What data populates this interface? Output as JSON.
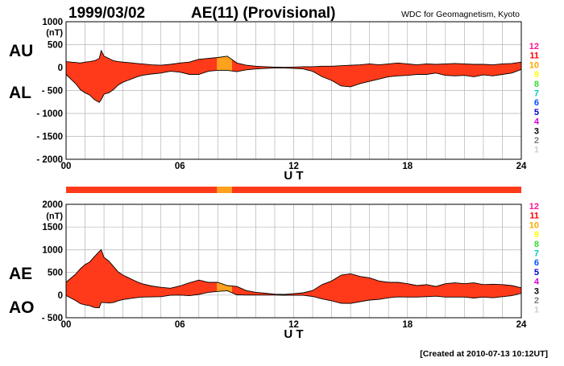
{
  "header": {
    "date": "1999/03/02",
    "title": "AE(11) (Provisional)",
    "source": "WDC for Geomagnetism, Kyoto"
  },
  "footer": {
    "created": "[Created at 2010-07-13 10:12UT]"
  },
  "colors": {
    "fill_main": "#ff3a1a",
    "fill_stations_10": "#ffa01e",
    "stations_bar": "#ff3a1a",
    "grid": "#b4b4b4",
    "scale": [
      "#cfcfcf",
      "#7f7f7f",
      "#000000",
      "#d400d4",
      "#0000cc",
      "#0055ff",
      "#00c8c8",
      "#33dd33",
      "#ffff00",
      "#ffaa00",
      "#ff0000",
      "#ff1493"
    ]
  },
  "station_scale": [
    "1",
    "2",
    "3",
    "4",
    "5",
    "6",
    "7",
    "8",
    "9",
    "10",
    "11",
    "12"
  ],
  "chart_data": [
    {
      "type": "area",
      "name": "top",
      "side_labels": {
        "upper": "AU",
        "lower": "AL"
      },
      "ylabel": "(nT)",
      "xlabel": "U T",
      "xlim": [
        0,
        24
      ],
      "ylim": [
        -2000,
        1000
      ],
      "yticks": [
        1000,
        500,
        0,
        -500,
        -1000,
        -1500,
        -2000
      ],
      "ytick_labels": [
        "1000",
        "500",
        "0",
        "- 500",
        "- 1000",
        "- 1500",
        "- 2000"
      ],
      "xticks": [
        0,
        6,
        12,
        18,
        24
      ],
      "xtick_labels": [
        "00",
        "06",
        "12",
        "18",
        "24"
      ],
      "grid": true,
      "highlight_ranges": [
        [
          7.95,
          8.75
        ]
      ],
      "series": [
        {
          "x": [
            0,
            0.25,
            0.5,
            0.75,
            1,
            1.25,
            1.5,
            1.75,
            1.85,
            2,
            2.25,
            2.5,
            2.75,
            3,
            3.25,
            3.5,
            3.75,
            4,
            4.5,
            5,
            5.5,
            6,
            6.5,
            7,
            7.5,
            8,
            8.5,
            9,
            9.5,
            10,
            10.5,
            11,
            11.5,
            12,
            12.5,
            13,
            13.5,
            14,
            14.5,
            15,
            15.5,
            16,
            16.5,
            17,
            17.5,
            18,
            18.5,
            19,
            19.5,
            20,
            20.5,
            21,
            21.5,
            22,
            22.5,
            23,
            23.5,
            24
          ],
          "upper": [
            130,
            120,
            110,
            100,
            120,
            130,
            150,
            200,
            370,
            250,
            200,
            150,
            130,
            120,
            110,
            100,
            90,
            80,
            60,
            50,
            70,
            100,
            120,
            180,
            200,
            220,
            250,
            100,
            50,
            30,
            20,
            10,
            5,
            10,
            20,
            20,
            30,
            30,
            40,
            50,
            60,
            80,
            60,
            80,
            100,
            80,
            60,
            80,
            70,
            80,
            90,
            80,
            70,
            70,
            60,
            80,
            90,
            120
          ],
          "lower": [
            -150,
            -250,
            -350,
            -480,
            -550,
            -600,
            -700,
            -760,
            -700,
            -580,
            -550,
            -480,
            -380,
            -320,
            -280,
            -240,
            -200,
            -170,
            -140,
            -120,
            -80,
            -100,
            -150,
            -150,
            -80,
            -60,
            -60,
            -90,
            -50,
            -30,
            -20,
            -10,
            -10,
            -20,
            -30,
            -80,
            -200,
            -280,
            -400,
            -420,
            -350,
            -300,
            -250,
            -200,
            -180,
            -170,
            -150,
            -150,
            -120,
            -170,
            -180,
            -170,
            -200,
            -160,
            -180,
            -150,
            -120,
            -40
          ]
        }
      ]
    },
    {
      "type": "area",
      "name": "bottom",
      "side_labels": {
        "upper": "AE",
        "lower": "AO"
      },
      "ylabel": "(nT)",
      "xlabel": "U T",
      "xlim": [
        0,
        24
      ],
      "ylim": [
        -500,
        2000
      ],
      "yticks": [
        2000,
        1500,
        1000,
        500,
        0,
        -500
      ],
      "ytick_labels": [
        "2000",
        "1500",
        "1000",
        "500",
        "0",
        "- 500"
      ],
      "xticks": [
        0,
        6,
        12,
        18,
        24
      ],
      "xtick_labels": [
        "00",
        "06",
        "12",
        "18",
        "24"
      ],
      "grid": true,
      "highlight_ranges": [
        [
          7.95,
          8.75
        ]
      ],
      "series": [
        {
          "x": [
            0,
            0.25,
            0.5,
            0.75,
            1,
            1.25,
            1.5,
            1.75,
            1.85,
            2,
            2.25,
            2.5,
            2.75,
            3,
            3.25,
            3.5,
            3.75,
            4,
            4.5,
            5,
            5.5,
            6,
            6.5,
            7,
            7.5,
            8,
            8.5,
            9,
            9.5,
            10,
            10.5,
            11,
            11.5,
            12,
            12.5,
            13,
            13.5,
            14,
            14.5,
            15,
            15.5,
            16,
            16.5,
            17,
            17.5,
            18,
            18.5,
            19,
            19.5,
            20,
            20.5,
            21,
            21.5,
            22,
            22.5,
            23,
            23.5,
            24
          ],
          "upper": [
            280,
            370,
            460,
            580,
            670,
            730,
            850,
            960,
            1000,
            830,
            750,
            630,
            510,
            440,
            390,
            340,
            290,
            250,
            200,
            170,
            150,
            200,
            270,
            330,
            280,
            280,
            210,
            190,
            100,
            60,
            40,
            20,
            15,
            30,
            50,
            100,
            230,
            310,
            440,
            470,
            410,
            380,
            310,
            280,
            280,
            250,
            210,
            230,
            190,
            250,
            270,
            250,
            270,
            230,
            240,
            230,
            210,
            160
          ],
          "lower": [
            -10,
            -65,
            -120,
            -190,
            -215,
            -235,
            -275,
            -280,
            -165,
            -165,
            -175,
            -165,
            -125,
            -100,
            -85,
            -70,
            -55,
            -45,
            -40,
            -35,
            -5,
            0,
            -15,
            15,
            60,
            80,
            95,
            5,
            0,
            0,
            0,
            0,
            -3,
            -5,
            -5,
            -30,
            -85,
            -125,
            -180,
            -185,
            -145,
            -110,
            -95,
            -60,
            -40,
            -45,
            -45,
            -35,
            -25,
            -45,
            -45,
            -45,
            -65,
            -45,
            -60,
            -35,
            -15,
            40
          ]
        }
      ]
    }
  ]
}
